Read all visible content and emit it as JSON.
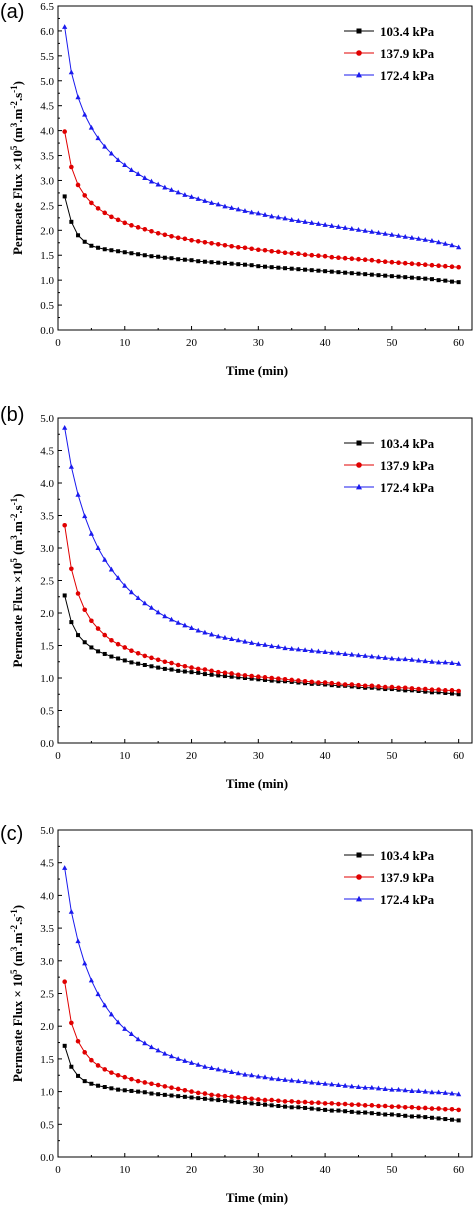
{
  "chart_data": [
    {
      "type": "line",
      "panel_label": "(a)",
      "xlabel": "Time (min)",
      "ylabel_parts": [
        "Permeate Flux ×10",
        "5",
        " (m",
        "3",
        ".m",
        "-2",
        ".s",
        "-1",
        ")"
      ],
      "xlim": [
        0,
        62
      ],
      "ylim": [
        0,
        6.5
      ],
      "xticks": [
        0,
        10,
        20,
        30,
        40,
        50,
        60
      ],
      "yticks": [
        0.0,
        0.5,
        1.0,
        1.5,
        2.0,
        2.5,
        3.0,
        3.5,
        4.0,
        4.5,
        5.0,
        5.5,
        6.0,
        6.5
      ],
      "grid": false,
      "legend_position": "top-right",
      "x": [
        1,
        2,
        3,
        4,
        5,
        6,
        7,
        8,
        9,
        10,
        11,
        12,
        13,
        14,
        15,
        16,
        17,
        18,
        19,
        20,
        21,
        22,
        23,
        24,
        25,
        26,
        27,
        28,
        29,
        30,
        31,
        32,
        33,
        34,
        35,
        36,
        37,
        38,
        39,
        40,
        41,
        42,
        43,
        44,
        45,
        46,
        47,
        48,
        49,
        50,
        51,
        52,
        53,
        54,
        55,
        56,
        57,
        58,
        59,
        60
      ],
      "series": [
        {
          "name": "103.4 kPa",
          "color": "#000000",
          "marker": "square",
          "values": [
            2.68,
            2.17,
            1.9,
            1.77,
            1.69,
            1.65,
            1.62,
            1.6,
            1.58,
            1.56,
            1.54,
            1.52,
            1.5,
            1.48,
            1.47,
            1.45,
            1.44,
            1.42,
            1.41,
            1.4,
            1.38,
            1.37,
            1.36,
            1.35,
            1.34,
            1.33,
            1.32,
            1.31,
            1.3,
            1.28,
            1.27,
            1.26,
            1.25,
            1.24,
            1.23,
            1.22,
            1.21,
            1.2,
            1.19,
            1.18,
            1.17,
            1.16,
            1.15,
            1.14,
            1.13,
            1.12,
            1.11,
            1.1,
            1.09,
            1.08,
            1.07,
            1.06,
            1.05,
            1.04,
            1.03,
            1.02,
            1.0,
            0.99,
            0.97,
            0.96
          ]
        },
        {
          "name": "137.9 kPa",
          "color": "#e00000",
          "marker": "circle",
          "values": [
            3.98,
            3.27,
            2.91,
            2.7,
            2.55,
            2.44,
            2.35,
            2.27,
            2.21,
            2.15,
            2.1,
            2.06,
            2.02,
            1.98,
            1.94,
            1.91,
            1.88,
            1.85,
            1.83,
            1.8,
            1.78,
            1.76,
            1.74,
            1.72,
            1.7,
            1.68,
            1.66,
            1.65,
            1.63,
            1.61,
            1.6,
            1.58,
            1.57,
            1.55,
            1.54,
            1.53,
            1.51,
            1.5,
            1.49,
            1.48,
            1.46,
            1.45,
            1.44,
            1.43,
            1.42,
            1.41,
            1.4,
            1.38,
            1.37,
            1.36,
            1.35,
            1.34,
            1.33,
            1.32,
            1.31,
            1.3,
            1.29,
            1.28,
            1.27,
            1.26
          ]
        },
        {
          "name": "172.4 kPa",
          "color": "#1a1aee",
          "marker": "triangle",
          "values": [
            6.08,
            5.17,
            4.67,
            4.32,
            4.06,
            3.85,
            3.68,
            3.54,
            3.41,
            3.31,
            3.21,
            3.13,
            3.05,
            2.98,
            2.92,
            2.86,
            2.81,
            2.76,
            2.71,
            2.67,
            2.63,
            2.59,
            2.55,
            2.52,
            2.48,
            2.45,
            2.42,
            2.39,
            2.36,
            2.34,
            2.31,
            2.28,
            2.26,
            2.24,
            2.21,
            2.19,
            2.17,
            2.15,
            2.13,
            2.11,
            2.09,
            2.07,
            2.05,
            2.03,
            2.01,
            1.99,
            1.97,
            1.95,
            1.93,
            1.91,
            1.89,
            1.87,
            1.85,
            1.83,
            1.81,
            1.79,
            1.76,
            1.73,
            1.7,
            1.66
          ]
        }
      ]
    },
    {
      "type": "line",
      "panel_label": "(b)",
      "xlabel": "Time (min)",
      "ylabel_parts": [
        "Permeate Flux ×10",
        "5",
        " (m",
        "3",
        ".m",
        "-2",
        ".s",
        "-1",
        ")"
      ],
      "xlim": [
        0,
        62
      ],
      "ylim": [
        0,
        5.0
      ],
      "xticks": [
        0,
        10,
        20,
        30,
        40,
        50,
        60
      ],
      "yticks": [
        0.0,
        0.5,
        1.0,
        1.5,
        2.0,
        2.5,
        3.0,
        3.5,
        4.0,
        4.5,
        5.0
      ],
      "grid": false,
      "legend_position": "top-right",
      "x": [
        1,
        2,
        3,
        4,
        5,
        6,
        7,
        8,
        9,
        10,
        11,
        12,
        13,
        14,
        15,
        16,
        17,
        18,
        19,
        20,
        21,
        22,
        23,
        24,
        25,
        26,
        27,
        28,
        29,
        30,
        31,
        32,
        33,
        34,
        35,
        36,
        37,
        38,
        39,
        40,
        41,
        42,
        43,
        44,
        45,
        46,
        47,
        48,
        49,
        50,
        51,
        52,
        53,
        54,
        55,
        56,
        57,
        58,
        59,
        60
      ],
      "series": [
        {
          "name": "103.4 kPa",
          "color": "#000000",
          "marker": "square",
          "values": [
            2.27,
            1.86,
            1.66,
            1.55,
            1.47,
            1.41,
            1.37,
            1.33,
            1.3,
            1.27,
            1.24,
            1.22,
            1.2,
            1.18,
            1.16,
            1.14,
            1.13,
            1.11,
            1.1,
            1.09,
            1.08,
            1.06,
            1.05,
            1.04,
            1.03,
            1.02,
            1.01,
            1.0,
            0.99,
            0.98,
            0.97,
            0.96,
            0.95,
            0.95,
            0.94,
            0.93,
            0.92,
            0.91,
            0.91,
            0.9,
            0.89,
            0.88,
            0.88,
            0.87,
            0.86,
            0.85,
            0.85,
            0.84,
            0.83,
            0.83,
            0.82,
            0.81,
            0.81,
            0.8,
            0.79,
            0.78,
            0.78,
            0.77,
            0.76,
            0.75
          ]
        },
        {
          "name": "137.9 kPa",
          "color": "#e00000",
          "marker": "circle",
          "values": [
            3.35,
            2.68,
            2.3,
            2.05,
            1.88,
            1.76,
            1.66,
            1.58,
            1.52,
            1.47,
            1.42,
            1.38,
            1.34,
            1.31,
            1.28,
            1.25,
            1.23,
            1.2,
            1.18,
            1.16,
            1.14,
            1.13,
            1.11,
            1.09,
            1.08,
            1.07,
            1.05,
            1.04,
            1.03,
            1.02,
            1.01,
            1.0,
            0.99,
            0.98,
            0.97,
            0.96,
            0.95,
            0.94,
            0.93,
            0.93,
            0.92,
            0.91,
            0.9,
            0.9,
            0.89,
            0.88,
            0.88,
            0.87,
            0.86,
            0.86,
            0.85,
            0.85,
            0.84,
            0.83,
            0.83,
            0.82,
            0.82,
            0.81,
            0.81,
            0.8
          ]
        },
        {
          "name": "172.4 kPa",
          "color": "#1a1aee",
          "marker": "triangle",
          "values": [
            4.85,
            4.25,
            3.82,
            3.49,
            3.22,
            3.0,
            2.82,
            2.67,
            2.54,
            2.42,
            2.32,
            2.23,
            2.15,
            2.08,
            2.01,
            1.95,
            1.9,
            1.85,
            1.81,
            1.77,
            1.73,
            1.7,
            1.67,
            1.64,
            1.62,
            1.6,
            1.58,
            1.56,
            1.54,
            1.52,
            1.51,
            1.49,
            1.48,
            1.46,
            1.45,
            1.44,
            1.43,
            1.42,
            1.41,
            1.4,
            1.39,
            1.38,
            1.37,
            1.36,
            1.35,
            1.34,
            1.33,
            1.32,
            1.31,
            1.3,
            1.29,
            1.29,
            1.28,
            1.27,
            1.26,
            1.25,
            1.24,
            1.24,
            1.23,
            1.22
          ]
        }
      ]
    },
    {
      "type": "line",
      "panel_label": "(c)",
      "xlabel": "Time (min)",
      "ylabel_parts": [
        "Permeate Flux × 10",
        "5",
        " (m",
        "3",
        ".m",
        "-2",
        ".s",
        "-1",
        ")"
      ],
      "xlim": [
        0,
        62
      ],
      "ylim": [
        0,
        5.0
      ],
      "xticks": [
        0,
        10,
        20,
        30,
        40,
        50,
        60
      ],
      "yticks": [
        0.0,
        0.5,
        1.0,
        1.5,
        2.0,
        2.5,
        3.0,
        3.5,
        4.0,
        4.5,
        5.0
      ],
      "grid": false,
      "legend_position": "top-right",
      "x": [
        1,
        2,
        3,
        4,
        5,
        6,
        7,
        8,
        9,
        10,
        11,
        12,
        13,
        14,
        15,
        16,
        17,
        18,
        19,
        20,
        21,
        22,
        23,
        24,
        25,
        26,
        27,
        28,
        29,
        30,
        31,
        32,
        33,
        34,
        35,
        36,
        37,
        38,
        39,
        40,
        41,
        42,
        43,
        44,
        45,
        46,
        47,
        48,
        49,
        50,
        51,
        52,
        53,
        54,
        55,
        56,
        57,
        58,
        59,
        60
      ],
      "series": [
        {
          "name": "103.4 kPa",
          "color": "#000000",
          "marker": "square",
          "values": [
            1.7,
            1.38,
            1.24,
            1.16,
            1.12,
            1.09,
            1.07,
            1.05,
            1.03,
            1.02,
            1.01,
            1.0,
            0.99,
            0.97,
            0.96,
            0.95,
            0.94,
            0.93,
            0.92,
            0.91,
            0.9,
            0.89,
            0.88,
            0.87,
            0.86,
            0.85,
            0.84,
            0.83,
            0.82,
            0.81,
            0.8,
            0.79,
            0.78,
            0.77,
            0.76,
            0.76,
            0.75,
            0.74,
            0.73,
            0.72,
            0.71,
            0.71,
            0.7,
            0.69,
            0.68,
            0.68,
            0.67,
            0.66,
            0.65,
            0.65,
            0.64,
            0.63,
            0.62,
            0.62,
            0.61,
            0.6,
            0.59,
            0.58,
            0.57,
            0.56
          ]
        },
        {
          "name": "137.9 kPa",
          "color": "#e00000",
          "marker": "circle",
          "values": [
            2.68,
            2.05,
            1.77,
            1.6,
            1.48,
            1.4,
            1.34,
            1.29,
            1.25,
            1.22,
            1.19,
            1.16,
            1.14,
            1.12,
            1.1,
            1.08,
            1.06,
            1.04,
            1.02,
            1.0,
            0.98,
            0.97,
            0.95,
            0.94,
            0.93,
            0.92,
            0.91,
            0.9,
            0.89,
            0.88,
            0.87,
            0.87,
            0.86,
            0.85,
            0.85,
            0.84,
            0.84,
            0.83,
            0.83,
            0.82,
            0.82,
            0.81,
            0.81,
            0.8,
            0.8,
            0.79,
            0.79,
            0.78,
            0.78,
            0.77,
            0.77,
            0.76,
            0.76,
            0.75,
            0.75,
            0.74,
            0.74,
            0.73,
            0.73,
            0.72
          ]
        },
        {
          "name": "172.4 kPa",
          "color": "#1a1aee",
          "marker": "triangle",
          "values": [
            4.42,
            3.75,
            3.3,
            2.96,
            2.7,
            2.49,
            2.32,
            2.18,
            2.06,
            1.96,
            1.88,
            1.8,
            1.74,
            1.68,
            1.63,
            1.58,
            1.54,
            1.5,
            1.47,
            1.44,
            1.41,
            1.38,
            1.36,
            1.34,
            1.32,
            1.3,
            1.28,
            1.26,
            1.25,
            1.23,
            1.22,
            1.2,
            1.19,
            1.18,
            1.17,
            1.16,
            1.15,
            1.14,
            1.13,
            1.12,
            1.11,
            1.1,
            1.09,
            1.08,
            1.07,
            1.06,
            1.06,
            1.05,
            1.04,
            1.03,
            1.03,
            1.02,
            1.01,
            1.01,
            1.0,
            0.99,
            0.99,
            0.98,
            0.97,
            0.96
          ]
        }
      ]
    }
  ]
}
